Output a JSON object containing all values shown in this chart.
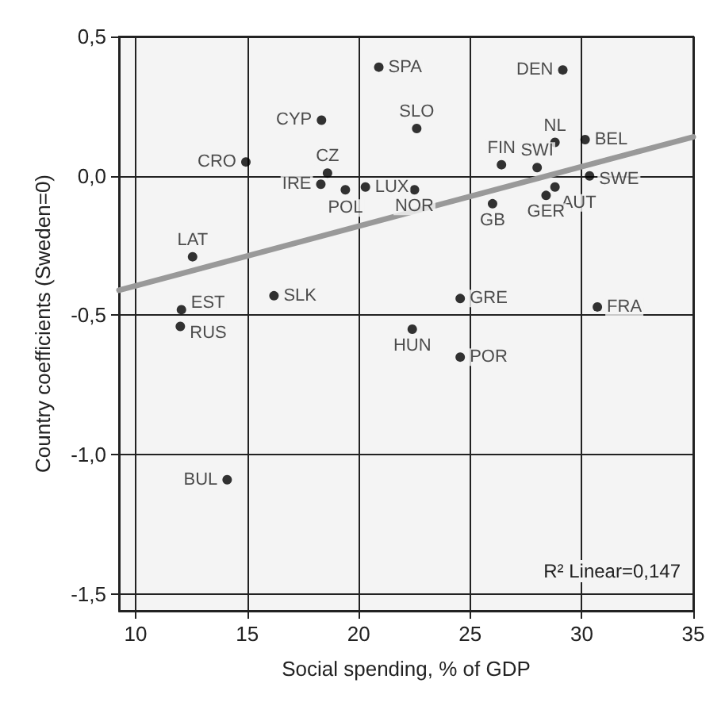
{
  "chart_data": {
    "type": "scatter",
    "xlabel": "Social spending, % of GDP",
    "ylabel": "Country coefficients (Sweden=0)",
    "annotations": [
      "R² Linear=0,147"
    ],
    "xlim": [
      9.25,
      35
    ],
    "xticks": [
      10,
      15,
      20,
      25,
      30,
      35
    ],
    "ylim": [
      -1.56,
      0.5
    ],
    "yticks": [
      {
        "value": -1.5,
        "label": "-1,5"
      },
      {
        "value": -1.0,
        "label": "-1,0"
      },
      {
        "value": -0.5,
        "label": "-0,5"
      },
      {
        "value": 0,
        "label": "0,0"
      },
      {
        "value": 0.5,
        "label": "0,5"
      }
    ],
    "grid": true,
    "marker": "circle",
    "series": [
      {
        "color": "#000000",
        "x": [
          20.9,
          18.33,
          14.94,
          18.6,
          18.3,
          19.4,
          20.3,
          12.55,
          16.2,
          12.05,
          12.0,
          29.15,
          22.6,
          28.8,
          30.15,
          26.4,
          28.0,
          30.35,
          22.5,
          28.8,
          28.4,
          26.0,
          24.55,
          30.7,
          22.4,
          24.55,
          14.1
        ],
        "values": [
          0.39,
          0.2,
          0.05,
          0.01,
          -0.03,
          -0.05,
          -0.04,
          -0.29,
          -0.43,
          -0.48,
          -0.54,
          0.38,
          0.17,
          0.12,
          0.13,
          0.04,
          0.03,
          0.0,
          -0.05,
          -0.04,
          -0.07,
          -0.1,
          -0.44,
          -0.47,
          -0.55,
          -0.65,
          -1.09
        ],
        "value_labels": [
          "SPA",
          "CYP",
          "CRO",
          "CZ",
          "IRE",
          "POL",
          "LUX",
          "LAT",
          "SLK",
          "EST",
          "RUS",
          "DEN",
          "SLO",
          "NL",
          "BEL",
          "FIN",
          "SWI",
          "SWE",
          "NOR",
          "AUT",
          "GER",
          "GB",
          "GRE",
          "FRA",
          "HUN",
          "POR",
          "BUL"
        ]
      },
      {
        "type": "line",
        "color": "#999999",
        "x": [
          9.25,
          35
        ],
        "values": [
          -0.41,
          0.14
        ],
        "marker": "none"
      }
    ]
  }
}
